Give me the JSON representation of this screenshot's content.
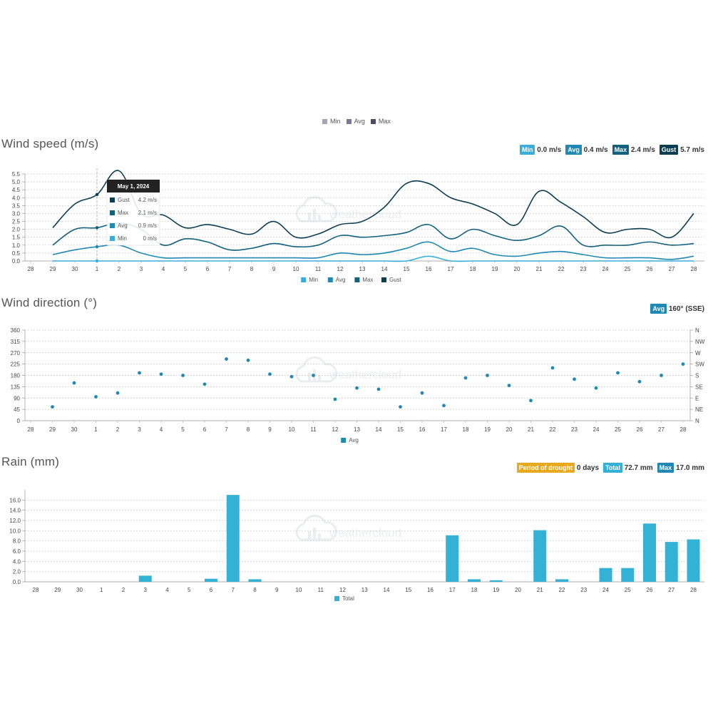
{
  "top_legend": [
    {
      "label": "Min",
      "color": "#a7a3b6"
    },
    {
      "label": "Avg",
      "color": "#7d7891"
    },
    {
      "label": "Max",
      "color": "#4f4a63"
    }
  ],
  "wind_speed": {
    "title": "Wind speed (m/s)",
    "badges": [
      {
        "label": "Min",
        "value": "0.0 m/s",
        "color": "#3aaed8"
      },
      {
        "label": "Avg",
        "value": "0.4 m/s",
        "color": "#1f88b4"
      },
      {
        "label": "Max",
        "value": "2.4 m/s",
        "color": "#11617f"
      },
      {
        "label": "Gust",
        "value": "5.7 m/s",
        "color": "#0b3d53"
      }
    ],
    "tooltip": {
      "date": "May 1, 2024",
      "rows": [
        {
          "label": "Gust",
          "value": "4.2 m/s",
          "color": "#0b3d53"
        },
        {
          "label": "Max",
          "value": "2.1 m/s",
          "color": "#11617f"
        },
        {
          "label": "Avg",
          "value": "0.9 m/s",
          "color": "#1f88b4"
        },
        {
          "label": "Min",
          "value": "0 m/s",
          "color": "#3aaed8"
        }
      ]
    }
  },
  "wind_direction": {
    "title": "Wind direction (°)",
    "badges": [
      {
        "label": "Avg",
        "value": "160° (SSE)",
        "color": "#1f88b4"
      }
    ]
  },
  "rain": {
    "title": "Rain (mm)",
    "badges": [
      {
        "label": "Period of drought",
        "value": "0 days",
        "color": "#e7a91d"
      },
      {
        "label": "Total",
        "value": "72.7 mm",
        "color": "#33b2d6"
      },
      {
        "label": "Max",
        "value": "17.0 mm",
        "color": "#1f88b4"
      }
    ]
  },
  "watermark": "weathercloud",
  "chart_data": [
    {
      "type": "line",
      "categories": [
        "28",
        "29",
        "30",
        "1",
        "2",
        "3",
        "4",
        "5",
        "6",
        "7",
        "8",
        "9",
        "10",
        "11",
        "12",
        "13",
        "14",
        "15",
        "16",
        "17",
        "18",
        "19",
        "20",
        "21",
        "22",
        "23",
        "24",
        "25",
        "26",
        "27",
        "28"
      ],
      "ylim": [
        0,
        5.5
      ],
      "yticks": [
        "0.0",
        "0.5",
        "1.0",
        "1.5",
        "2.0",
        "2.5",
        "3.0",
        "3.5",
        "4.0",
        "4.5",
        "5.0",
        "5.5"
      ],
      "legend": [
        "Min",
        "Avg",
        "Max",
        "Gust"
      ],
      "series": [
        {
          "name": "Gust",
          "color": "#0b3d53",
          "values": [
            null,
            2.1,
            3.6,
            4.2,
            5.7,
            3.0,
            2.9,
            2.1,
            2.3,
            2.0,
            1.7,
            2.5,
            1.5,
            1.7,
            2.3,
            2.5,
            3.4,
            4.9,
            4.9,
            4.0,
            3.6,
            3.0,
            2.3,
            4.4,
            3.7,
            2.8,
            1.8,
            2.0,
            2.0,
            1.5,
            3.0
          ]
        },
        {
          "name": "Max",
          "color": "#11617f",
          "values": [
            null,
            1.0,
            2.0,
            2.1,
            2.4,
            2.0,
            1.0,
            1.4,
            1.2,
            0.7,
            0.8,
            1.1,
            0.9,
            1.0,
            1.6,
            1.5,
            1.6,
            1.8,
            2.3,
            1.4,
            2.0,
            1.6,
            1.3,
            1.6,
            2.2,
            1.0,
            1.0,
            1.0,
            1.2,
            1.0,
            1.1
          ]
        },
        {
          "name": "Avg",
          "color": "#1f88b4",
          "values": [
            null,
            0.4,
            0.7,
            0.9,
            1.0,
            0.5,
            0.2,
            0.2,
            0.2,
            0.2,
            0.2,
            0.2,
            0.2,
            0.2,
            0.5,
            0.4,
            0.5,
            0.8,
            1.2,
            0.6,
            0.8,
            0.4,
            0.3,
            0.5,
            0.6,
            0.4,
            0.2,
            0.2,
            0.2,
            0.1,
            0.3
          ]
        },
        {
          "name": "Min",
          "color": "#3aaed8",
          "values": [
            null,
            0,
            0,
            0,
            0,
            0,
            0,
            0,
            0,
            0,
            0,
            0,
            0,
            0,
            0,
            0,
            0,
            0,
            0.3,
            0,
            0,
            0,
            0,
            0,
            0,
            0,
            0,
            0,
            0,
            0,
            0
          ]
        }
      ]
    },
    {
      "type": "scatter",
      "categories": [
        "28",
        "29",
        "30",
        "1",
        "2",
        "3",
        "4",
        "5",
        "6",
        "7",
        "8",
        "9",
        "10",
        "11",
        "12",
        "13",
        "14",
        "15",
        "16",
        "17",
        "18",
        "19",
        "20",
        "21",
        "22",
        "23",
        "24",
        "25",
        "26",
        "27",
        "28"
      ],
      "ylim": [
        0,
        360
      ],
      "yticks": [
        "0",
        "45",
        "90",
        "135",
        "180",
        "225",
        "270",
        "315",
        "360"
      ],
      "yticks_right": [
        "N",
        "NE",
        "E",
        "SE",
        "S",
        "SW",
        "W",
        "NW",
        "N"
      ],
      "legend": [
        "Avg"
      ],
      "series": [
        {
          "name": "Avg",
          "color": "#1f88b4",
          "values": [
            null,
            55,
            150,
            95,
            110,
            190,
            185,
            180,
            145,
            245,
            240,
            185,
            175,
            180,
            85,
            130,
            125,
            55,
            110,
            60,
            170,
            180,
            140,
            80,
            210,
            165,
            130,
            190,
            155,
            180,
            225
          ]
        }
      ]
    },
    {
      "type": "bar",
      "categories": [
        "28",
        "29",
        "30",
        "1",
        "2",
        "3",
        "4",
        "5",
        "6",
        "7",
        "8",
        "9",
        "10",
        "11",
        "12",
        "13",
        "14",
        "15",
        "16",
        "17",
        "18",
        "19",
        "20",
        "21",
        "22",
        "23",
        "24",
        "25",
        "26",
        "27",
        "28"
      ],
      "ylim": [
        0,
        18
      ],
      "yticks": [
        "0.0",
        "2.0",
        "4.0",
        "6.0",
        "8.0",
        "10.0",
        "12.0",
        "14.0",
        "16.0"
      ],
      "legend": [
        "Total"
      ],
      "series": [
        {
          "name": "Total",
          "color": "#33b2d6",
          "values": [
            0,
            0,
            0,
            0,
            0,
            1.2,
            0,
            0,
            0.6,
            17.0,
            0.5,
            0,
            0,
            0,
            0,
            0,
            0,
            0,
            0,
            9.1,
            0.5,
            0.3,
            0,
            10.1,
            0.5,
            0,
            2.7,
            2.7,
            11.4,
            7.8,
            8.3
          ]
        }
      ]
    }
  ]
}
